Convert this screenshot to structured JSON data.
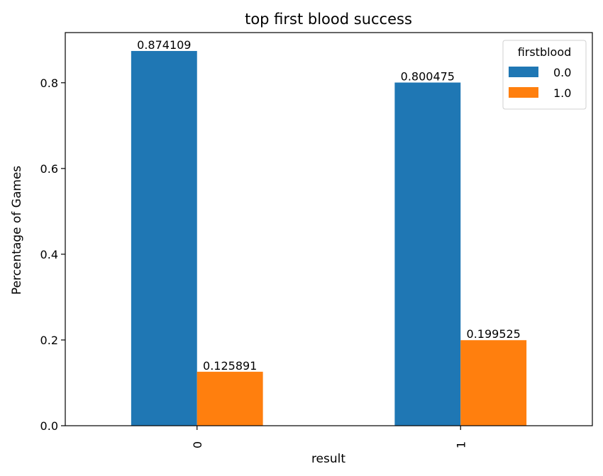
{
  "chart_data": {
    "type": "bar",
    "title": "top first blood success",
    "xlabel": "result",
    "ylabel": "Percentage of Games",
    "categories": [
      "0",
      "1"
    ],
    "ylim": [
      0,
      0.917
    ],
    "yticks": [
      0.0,
      0.2,
      0.4,
      0.6,
      0.8
    ],
    "ytick_labels": [
      "0.0",
      "0.2",
      "0.4",
      "0.6",
      "0.8"
    ],
    "legend": {
      "title": "firstblood",
      "placement": "top-right"
    },
    "grid": false,
    "series": [
      {
        "name": "0.0",
        "color": "#1f77b4",
        "values": [
          0.874109,
          0.800475
        ],
        "labels": [
          "0.874109",
          "0.800475"
        ]
      },
      {
        "name": "1.0",
        "color": "#ff7f0e",
        "values": [
          0.125891,
          0.199525
        ],
        "labels": [
          "0.125891",
          "0.199525"
        ]
      }
    ]
  }
}
